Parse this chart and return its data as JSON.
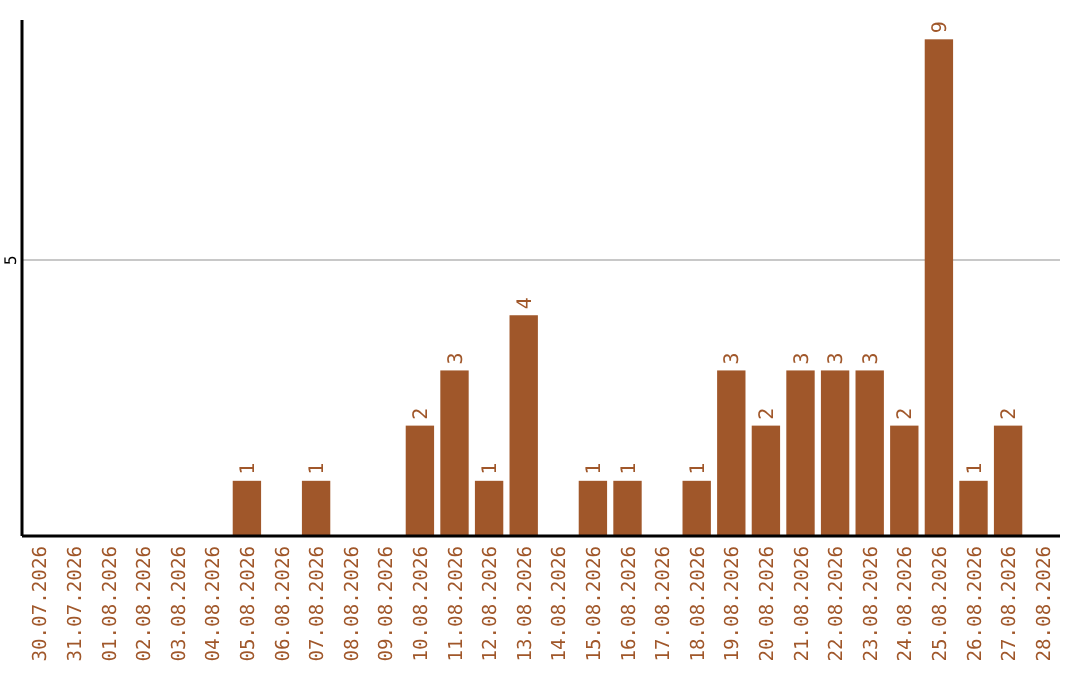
{
  "chart_data": {
    "type": "bar",
    "categories": [
      "30.07.2026",
      "31.07.2026",
      "01.08.2026",
      "02.08.2026",
      "03.08.2026",
      "04.08.2026",
      "05.08.2026",
      "06.08.2026",
      "07.08.2026",
      "08.08.2026",
      "09.08.2026",
      "10.08.2026",
      "11.08.2026",
      "12.08.2026",
      "13.08.2026",
      "14.08.2026",
      "15.08.2026",
      "16.08.2026",
      "17.08.2026",
      "18.08.2026",
      "19.08.2026",
      "20.08.2026",
      "21.08.2026",
      "22.08.2026",
      "23.08.2026",
      "24.08.2026",
      "25.08.2026",
      "26.08.2026",
      "27.08.2026",
      "28.08.2026"
    ],
    "values": [
      0,
      0,
      0,
      0,
      0,
      0,
      1,
      0,
      1,
      0,
      0,
      2,
      3,
      1,
      4,
      0,
      1,
      1,
      0,
      1,
      3,
      2,
      3,
      3,
      3,
      2,
      9,
      1,
      2,
      0
    ],
    "value_labels": [
      null,
      null,
      null,
      null,
      null,
      null,
      "1",
      null,
      "1",
      null,
      null,
      "2",
      "3",
      "1",
      "4",
      null,
      "1",
      "1",
      null,
      "1",
      "3",
      "2",
      "3",
      "3",
      "3",
      "2",
      "9",
      "1",
      "2",
      null
    ],
    "color": "#a0572a",
    "ylim": [
      0,
      9.35
    ],
    "yticks": [
      5
    ],
    "grid": "y"
  }
}
